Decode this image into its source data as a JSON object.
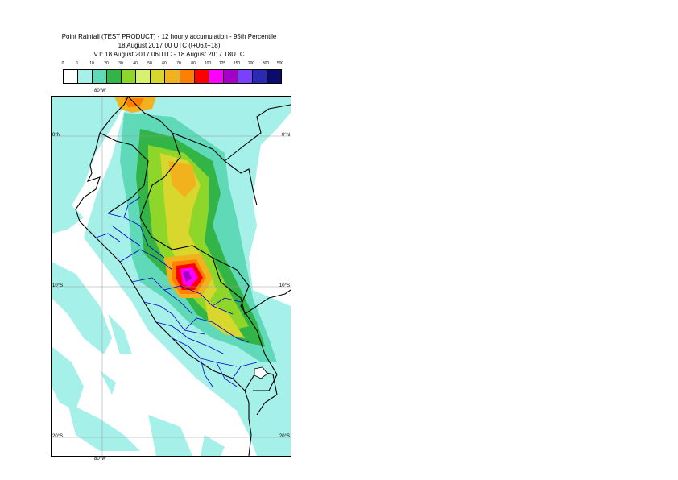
{
  "title": {
    "line1": "Point Rainfall (TEST PRODUCT) - 12 hourly accumulation - 95th Percentile",
    "line2": "18 August 2017 00 UTC (t+06,t+18)",
    "line3": "VT: 18 August 2017 06UTC - 18 August 2017 18UTC"
  },
  "legend": {
    "labels": [
      "0",
      "1",
      "10",
      "20",
      "30",
      "40",
      "50",
      "60",
      "70",
      "80",
      "100",
      "125",
      "150",
      "200",
      "300",
      "500"
    ],
    "colors": [
      "#ffffff",
      "#a6f0ea",
      "#5fd9b8",
      "#32b447",
      "#8fd62a",
      "#d8f070",
      "#d7d72e",
      "#f2b21e",
      "#ff7f00",
      "#ff0000",
      "#ff00ff",
      "#a300c8",
      "#7a40ff",
      "#2a2ab5",
      "#0b0b6b"
    ]
  },
  "map": {
    "gridlines": {
      "lat_top_left": "0°N",
      "lat_top_right": "0°N",
      "lat_mid_left": "10°S",
      "lat_mid_right": "10°S",
      "lat_bottom_left": "20°S",
      "lat_bottom_right": "20°S",
      "lon_top": "80°W",
      "lon_bottom": "80°W"
    },
    "colors": {
      "ocean_rain": "#a6f0ea",
      "teal": "#5fd9b8",
      "green": "#32b447",
      "lightgreen": "#8fd62a",
      "yellowgreen": "#d7d72e",
      "orange": "#f2b21e",
      "darkorange": "#ff7f00",
      "red": "#ff0000",
      "magenta": "#ff00ff",
      "purple": "#a300c8",
      "boundary_black": "#000000",
      "boundary_blue": "#0000cc"
    }
  }
}
